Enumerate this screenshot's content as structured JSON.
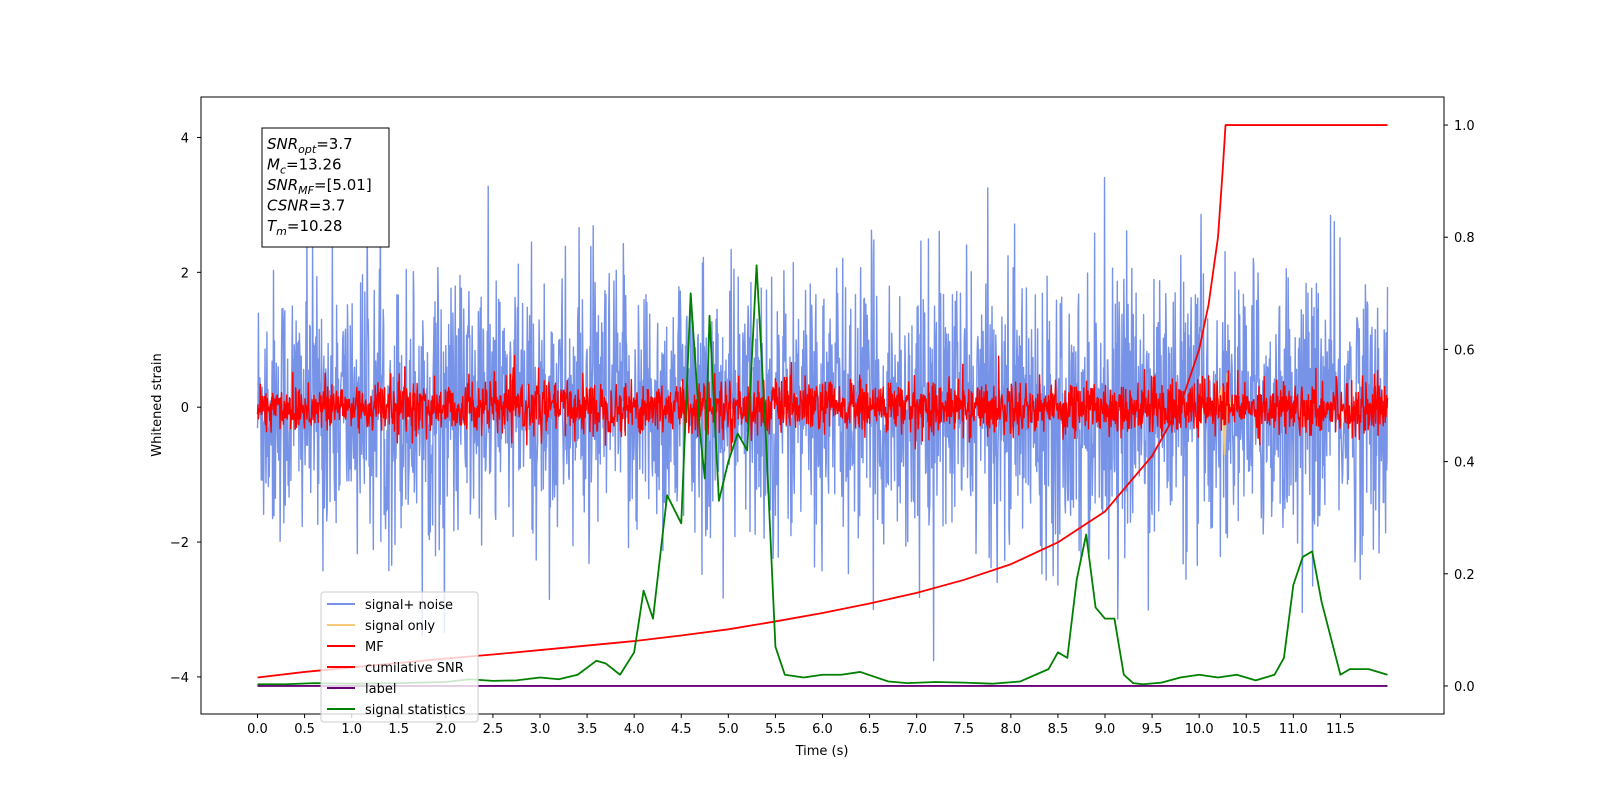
{
  "chart_data": {
    "type": "line",
    "xlabel": "Time (s)",
    "ylabel": "Whitened strain",
    "xlim": [
      -0.6,
      12.6
    ],
    "ylim": [
      -4.55,
      4.6
    ],
    "y2lim": [
      -0.05,
      1.05
    ],
    "x_ticks": [
      "0.0",
      "0.5",
      "1.0",
      "1.5",
      "2.0",
      "2.5",
      "3.0",
      "3.5",
      "4.0",
      "4.5",
      "5.0",
      "5.5",
      "6.0",
      "6.5",
      "7.0",
      "7.5",
      "8.0",
      "8.5",
      "9.0",
      "9.5",
      "10.0",
      "10.5",
      "11.0",
      "11.5"
    ],
    "y_ticks": [
      "−4",
      "−2",
      "0",
      "2",
      "4"
    ],
    "y2_ticks": [
      "0.0",
      "0.2",
      "0.4",
      "0.6",
      "0.8",
      "1.0"
    ],
    "legend_placement": "lower-left",
    "grid": false,
    "info_box": {
      "lines": [
        {
          "main": "SNR",
          "sub": "opt",
          "value": "=3.7"
        },
        {
          "main": "M",
          "sub": "c",
          "value": "=13.26"
        },
        {
          "main": "SNR",
          "sub": "MF",
          "value": "=[5.01]"
        },
        {
          "main": "CSNR",
          "sub": "",
          "value": "=3.7"
        },
        {
          "main": "T",
          "sub": "m",
          "value": "=10.28"
        }
      ]
    },
    "series": [
      {
        "name": "signal+ noise",
        "color": "#7793e8",
        "axis": "left",
        "kind": "noise",
        "amplitude_sd": 1.0,
        "x_range": [
          0,
          12
        ]
      },
      {
        "name": "signal only",
        "color": "#f7c77a",
        "axis": "left",
        "kind": "burst",
        "x": [
          10.2,
          10.24,
          10.27,
          10.3,
          10.33
        ],
        "y": [
          0.0,
          0.3,
          -0.7,
          0.5,
          0.0
        ]
      },
      {
        "name": "MF",
        "color": "#ff0000",
        "axis": "left",
        "kind": "noise",
        "amplitude_sd": 0.2,
        "x_range": [
          0,
          12
        ]
      },
      {
        "name": "cumilative SNR",
        "color": "#ff0000",
        "axis": "right",
        "x": [
          0,
          0.5,
          1,
          1.5,
          2,
          2.5,
          3,
          3.5,
          4,
          4.5,
          5,
          5.5,
          6,
          6.5,
          7,
          7.5,
          8,
          8.5,
          9,
          9.5,
          9.8,
          10,
          10.1,
          10.2,
          10.25,
          10.28,
          12
        ],
        "y": [
          0.015,
          0.025,
          0.033,
          0.041,
          0.049,
          0.056,
          0.064,
          0.072,
          0.08,
          0.09,
          0.101,
          0.115,
          0.13,
          0.147,
          0.166,
          0.189,
          0.217,
          0.256,
          0.311,
          0.41,
          0.5,
          0.6,
          0.68,
          0.8,
          0.92,
          1.0,
          1.0
        ]
      },
      {
        "name": "label",
        "color": "#6a0078",
        "axis": "right",
        "x": [
          0,
          12
        ],
        "y": [
          0,
          0
        ]
      },
      {
        "name": "signal statistics",
        "color": "#008000",
        "axis": "right",
        "x": [
          0,
          0.3,
          0.6,
          1,
          1.5,
          2,
          2.25,
          2.5,
          2.75,
          3,
          3.2,
          3.4,
          3.6,
          3.7,
          3.85,
          4,
          4.1,
          4.2,
          4.35,
          4.5,
          4.6,
          4.7,
          4.75,
          4.8,
          4.9,
          5,
          5.1,
          5.2,
          5.3,
          5.4,
          5.5,
          5.6,
          5.8,
          6,
          6.2,
          6.4,
          6.7,
          6.9,
          7.2,
          7.5,
          7.8,
          8.1,
          8.4,
          8.5,
          8.6,
          8.7,
          8.8,
          8.9,
          9,
          9.1,
          9.2,
          9.3,
          9.4,
          9.6,
          9.8,
          10,
          10.2,
          10.4,
          10.6,
          10.8,
          10.9,
          11,
          11.1,
          11.2,
          11.3,
          11.5,
          11.6,
          11.8,
          12
        ],
        "y": [
          0.003,
          0.003,
          0.005,
          0.004,
          0.005,
          0.007,
          0.012,
          0.009,
          0.01,
          0.015,
          0.012,
          0.02,
          0.045,
          0.04,
          0.02,
          0.06,
          0.17,
          0.12,
          0.34,
          0.29,
          0.7,
          0.45,
          0.37,
          0.66,
          0.33,
          0.4,
          0.45,
          0.42,
          0.75,
          0.44,
          0.07,
          0.02,
          0.015,
          0.02,
          0.02,
          0.025,
          0.008,
          0.005,
          0.007,
          0.006,
          0.004,
          0.008,
          0.03,
          0.06,
          0.05,
          0.19,
          0.27,
          0.14,
          0.12,
          0.12,
          0.02,
          0.005,
          0.003,
          0.006,
          0.015,
          0.02,
          0.015,
          0.02,
          0.01,
          0.02,
          0.05,
          0.18,
          0.23,
          0.24,
          0.15,
          0.02,
          0.03,
          0.03,
          0.02
        ]
      }
    ]
  }
}
